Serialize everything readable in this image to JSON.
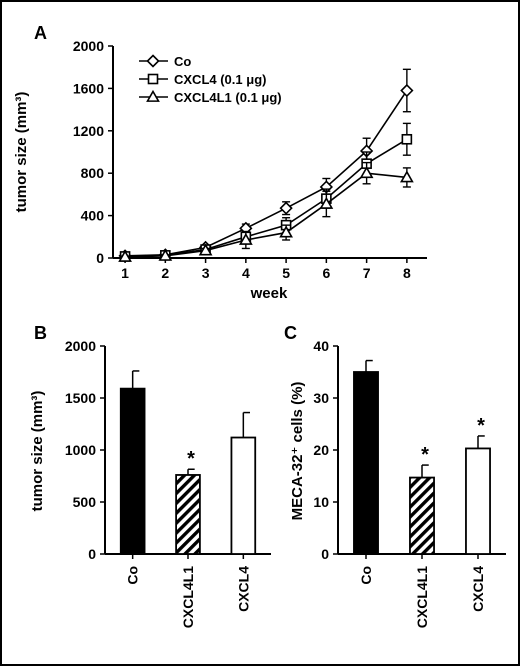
{
  "chart_data": [
    {
      "panel": "A",
      "type": "line",
      "xlabel": "week",
      "ylabel": "tumor size (mm³)",
      "x": [
        1,
        2,
        3,
        4,
        5,
        6,
        7,
        8
      ],
      "xlim": [
        0.7,
        8.5
      ],
      "ylim": [
        0,
        2000
      ],
      "yticks": [
        0,
        400,
        800,
        1200,
        1600,
        2000
      ],
      "legend_position": "top-left",
      "series": [
        {
          "name": "Co",
          "marker": "diamond",
          "values": [
            20,
            30,
            100,
            280,
            470,
            670,
            1010,
            1580
          ],
          "errors": [
            10,
            15,
            20,
            40,
            60,
            80,
            120,
            200
          ]
        },
        {
          "name": "CXCL4 (0.1 μg)",
          "marker": "square",
          "values": [
            15,
            25,
            80,
            200,
            310,
            560,
            890,
            1120
          ],
          "errors": [
            10,
            12,
            20,
            40,
            70,
            90,
            110,
            150
          ]
        },
        {
          "name": "CXCL4L1 (0.1 μg)",
          "marker": "triangle",
          "values": [
            10,
            20,
            70,
            170,
            240,
            510,
            800,
            760
          ],
          "errors": [
            8,
            10,
            20,
            80,
            70,
            120,
            100,
            90
          ]
        }
      ]
    },
    {
      "panel": "B",
      "type": "bar",
      "ylabel": "tumor size (mm³)",
      "categories": [
        "Co",
        "CXCL4L1",
        "CXCL4"
      ],
      "values": [
        1590,
        760,
        1120
      ],
      "errors": [
        170,
        55,
        240
      ],
      "fills": [
        "solid-black",
        "hatched",
        "white"
      ],
      "significance": [
        "",
        "*",
        ""
      ],
      "ylim": [
        0,
        2000
      ],
      "yticks": [
        0,
        500,
        1000,
        1500,
        2000
      ]
    },
    {
      "panel": "C",
      "type": "bar",
      "ylabel": "MECA-32⁺ cells (%)",
      "categories": [
        "Co",
        "CXCL4L1",
        "CXCL4"
      ],
      "values": [
        35,
        14.7,
        20.3
      ],
      "errors": [
        2.2,
        2.4,
        2.4
      ],
      "fills": [
        "solid-black",
        "hatched",
        "white"
      ],
      "significance": [
        "",
        "*",
        "*"
      ],
      "ylim": [
        0,
        40
      ],
      "yticks": [
        0,
        10,
        20,
        30,
        40
      ]
    }
  ]
}
